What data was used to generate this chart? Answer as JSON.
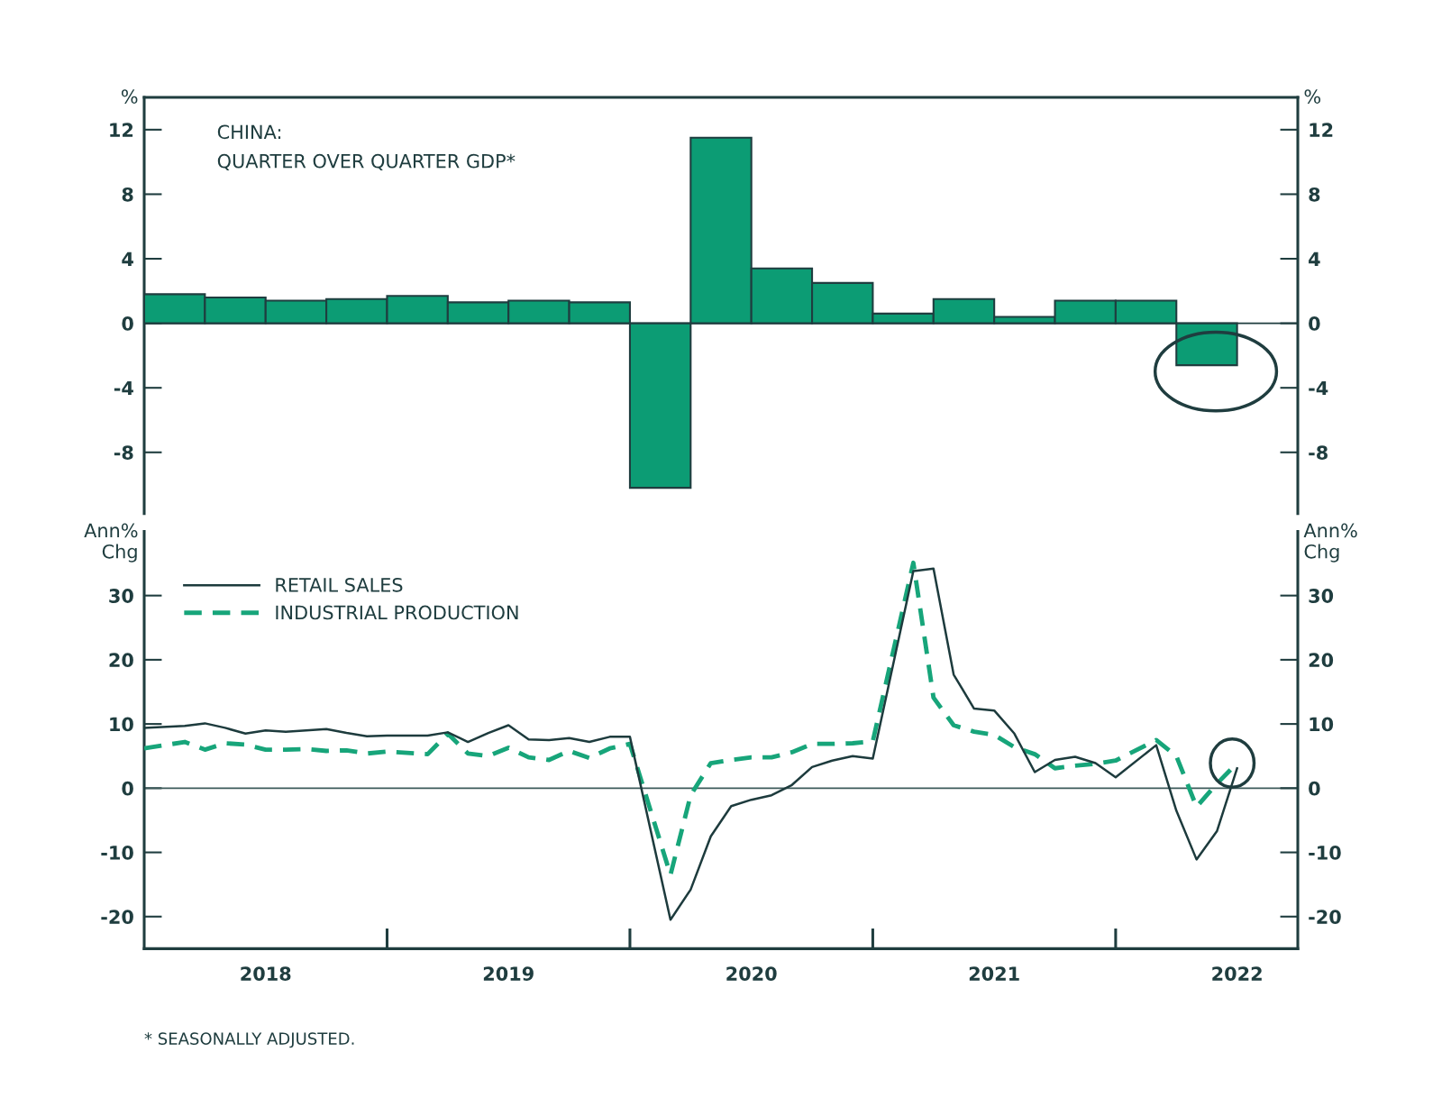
{
  "chart_data": [
    {
      "type": "bar",
      "title": "CHINA:",
      "subtitle": "QUARTER OVER QUARTER GDP*",
      "ylabel": "%",
      "y2label": "%",
      "x": [
        2018.125,
        2018.375,
        2018.625,
        2018.875,
        2019.125,
        2019.375,
        2019.625,
        2019.875,
        2020.125,
        2020.375,
        2020.625,
        2020.875,
        2021.125,
        2021.375,
        2021.625,
        2021.875,
        2022.125,
        2022.375
      ],
      "values": [
        1.8,
        1.6,
        1.4,
        1.5,
        1.7,
        1.3,
        1.4,
        1.3,
        -10.2,
        11.5,
        3.4,
        2.5,
        0.6,
        1.5,
        0.4,
        1.4,
        1.4,
        -2.6
      ],
      "color": "#0c9c74",
      "xlim": [
        2018,
        2022.75
      ],
      "ylim": [
        -11.8,
        14
      ],
      "yticks": [
        -8,
        -4,
        0,
        4,
        8,
        12
      ],
      "y2lim": [
        -11.8,
        14
      ],
      "y2ticks": [
        -8,
        -4,
        0,
        4,
        8,
        12
      ],
      "ref_lines": [
        {
          "axis": "y",
          "value": 0,
          "color": "#1f3d3f"
        }
      ],
      "tick_labels": "y"
    },
    {
      "type": "line",
      "ylabel": "Ann%\nChg",
      "y2label": "Ann%\nChg",
      "x": [
        2018.0,
        2018.167,
        2018.25,
        2018.333,
        2018.417,
        2018.5,
        2018.583,
        2018.667,
        2018.75,
        2018.833,
        2018.917,
        2019.0,
        2019.167,
        2019.25,
        2019.333,
        2019.417,
        2019.5,
        2019.583,
        2019.667,
        2019.75,
        2019.833,
        2019.917,
        2020.0,
        2020.167,
        2020.25,
        2020.333,
        2020.417,
        2020.5,
        2020.583,
        2020.667,
        2020.75,
        2020.833,
        2020.917,
        2021.0,
        2021.167,
        2021.25,
        2021.333,
        2021.417,
        2021.5,
        2021.583,
        2021.667,
        2021.75,
        2021.833,
        2021.917,
        2022.0,
        2022.167,
        2022.25,
        2022.333,
        2022.417,
        2022.5
      ],
      "series": [
        {
          "name": "RETAIL SALES",
          "color": "#1d3b3d",
          "line_style": "solid",
          "values": [
            9.4,
            9.7,
            10.1,
            9.4,
            8.5,
            9.0,
            8.8,
            9.0,
            9.2,
            8.6,
            8.1,
            8.2,
            8.2,
            8.7,
            7.2,
            8.6,
            9.8,
            7.6,
            7.5,
            7.8,
            7.2,
            8.0,
            8.0,
            -20.5,
            -15.8,
            -7.5,
            -2.8,
            -1.8,
            -1.1,
            0.5,
            3.3,
            4.3,
            5.0,
            4.6,
            33.8,
            34.2,
            17.7,
            12.4,
            12.1,
            8.5,
            2.5,
            4.4,
            4.9,
            3.9,
            1.7,
            6.7,
            -3.5,
            -11.1,
            -6.7,
            3.1
          ]
        },
        {
          "name": "INDUSTRIAL PRODUCTION",
          "color": "#17a57a",
          "line_style": "dashed",
          "values": [
            6.2,
            7.2,
            6.0,
            7.0,
            6.8,
            6.0,
            6.0,
            6.1,
            5.8,
            5.9,
            5.4,
            5.7,
            5.3,
            8.5,
            5.4,
            5.0,
            6.3,
            4.8,
            4.4,
            5.8,
            4.7,
            6.2,
            6.9,
            -13.5,
            -1.1,
            3.9,
            4.4,
            4.8,
            4.8,
            5.6,
            6.9,
            6.9,
            7.0,
            7.3,
            35.1,
            14.1,
            9.8,
            8.8,
            8.3,
            6.4,
            5.3,
            3.1,
            3.5,
            3.8,
            4.3,
            7.5,
            5.0,
            -2.9,
            0.7,
            3.9
          ]
        }
      ],
      "xlim": [
        2018,
        2022.75
      ],
      "xticks": [
        {
          "value": 2018.5,
          "label": "2018"
        },
        {
          "value": 2019.5,
          "label": "2019"
        },
        {
          "value": 2020.5,
          "label": "2020"
        },
        {
          "value": 2021.5,
          "label": "2021"
        },
        {
          "value": 2022.5,
          "label": "2022"
        }
      ],
      "ylim": [
        -25,
        40
      ],
      "yticks": [
        -20,
        -10,
        0,
        10,
        20,
        30
      ],
      "y2lim": [
        -25,
        40
      ],
      "y2ticks": [
        -20,
        -10,
        0,
        10,
        20,
        30
      ],
      "ref_lines": [
        {
          "axis": "y",
          "value": 0,
          "color": "#3d5a5a"
        }
      ],
      "legend": "top left",
      "annotations": [
        "* SEASONALLY ADJUSTED."
      ]
    }
  ]
}
